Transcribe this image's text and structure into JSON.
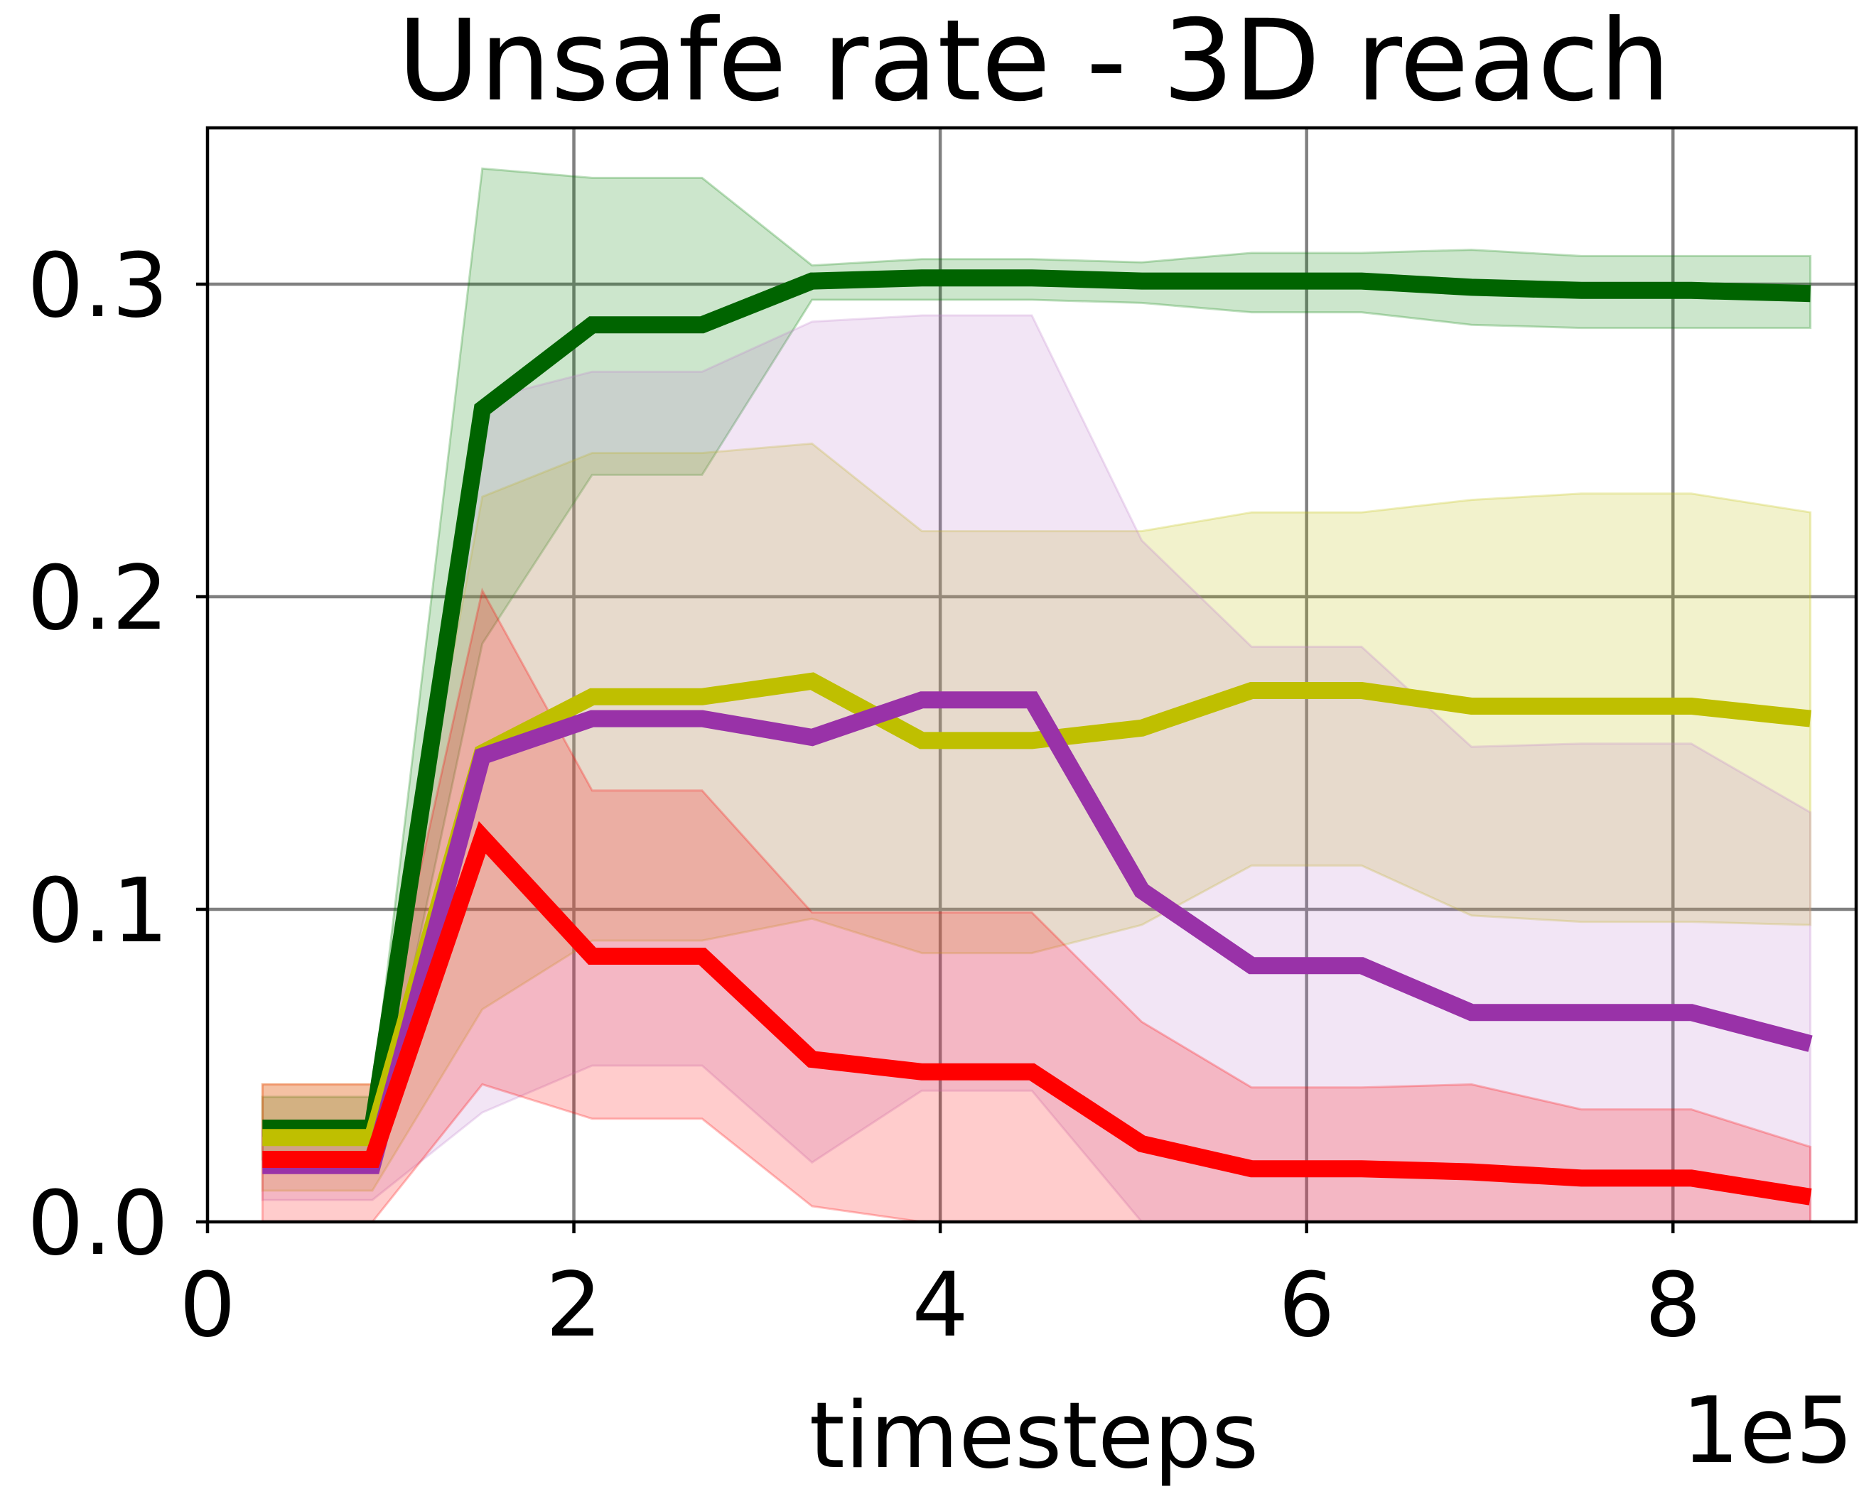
{
  "chart_data": {
    "type": "line",
    "title": "Unsafe rate - 3D reach",
    "xlabel": "timesteps",
    "ylabel": "",
    "x_multiplier_label": "1e5",
    "xlim": [
      0,
      9.0
    ],
    "ylim": [
      0,
      0.35
    ],
    "xticks": [
      0,
      2,
      4,
      6,
      8
    ],
    "xtick_labels": [
      "0",
      "2",
      "4",
      "6",
      "8"
    ],
    "yticks": [
      0.0,
      0.1,
      0.2,
      0.3
    ],
    "ytick_labels": [
      "0.0",
      "0.1",
      "0.2",
      "0.3"
    ],
    "grid": true,
    "legend": "none",
    "x": [
      0.3,
      0.9,
      1.5,
      2.1,
      2.7,
      3.3,
      3.9,
      4.5,
      5.1,
      5.7,
      6.3,
      6.9,
      7.5,
      8.1,
      8.75
    ],
    "series": [
      {
        "color": "#006400",
        "band_color": "#008000",
        "values": [
          0.03,
          0.03,
          0.26,
          0.287,
          0.287,
          0.301,
          0.302,
          0.302,
          0.301,
          0.301,
          0.301,
          0.299,
          0.298,
          0.298,
          0.297
        ],
        "lower": [
          0.02,
          0.02,
          0.185,
          0.239,
          0.239,
          0.295,
          0.295,
          0.295,
          0.294,
          0.291,
          0.291,
          0.287,
          0.286,
          0.286,
          0.286
        ],
        "upper": [
          0.04,
          0.04,
          0.337,
          0.334,
          0.334,
          0.306,
          0.308,
          0.308,
          0.307,
          0.31,
          0.31,
          0.311,
          0.309,
          0.309,
          0.309
        ]
      },
      {
        "color": "#bfbf00",
        "band_color": "#bfbf00",
        "values": [
          0.027,
          0.027,
          0.15,
          0.168,
          0.168,
          0.173,
          0.154,
          0.154,
          0.158,
          0.17,
          0.17,
          0.165,
          0.165,
          0.165,
          0.161
        ],
        "lower": [
          0.01,
          0.01,
          0.068,
          0.09,
          0.09,
          0.097,
          0.086,
          0.086,
          0.095,
          0.114,
          0.114,
          0.098,
          0.096,
          0.096,
          0.095
        ],
        "upper": [
          0.044,
          0.044,
          0.232,
          0.246,
          0.246,
          0.249,
          0.221,
          0.221,
          0.221,
          0.227,
          0.227,
          0.231,
          0.233,
          0.233,
          0.227
        ]
      },
      {
        "color": "#9932a8",
        "band_color": "#bf7fcc",
        "values": [
          0.018,
          0.018,
          0.149,
          0.161,
          0.161,
          0.155,
          0.167,
          0.167,
          0.106,
          0.082,
          0.082,
          0.067,
          0.067,
          0.067,
          0.057
        ],
        "lower": [
          0.007,
          0.007,
          0.035,
          0.05,
          0.05,
          0.019,
          0.042,
          0.042,
          0.0,
          0.0,
          0.0,
          0.0,
          0.0,
          0.0,
          0.0
        ],
        "upper": [
          0.029,
          0.029,
          0.263,
          0.272,
          0.272,
          0.288,
          0.29,
          0.29,
          0.218,
          0.184,
          0.184,
          0.152,
          0.153,
          0.153,
          0.131
        ]
      },
      {
        "color": "#ff0000",
        "band_color": "#ff0000",
        "values": [
          0.02,
          0.02,
          0.123,
          0.085,
          0.085,
          0.052,
          0.048,
          0.048,
          0.025,
          0.017,
          0.017,
          0.016,
          0.014,
          0.014,
          0.008
        ],
        "lower": [
          0.0,
          0.0,
          0.044,
          0.033,
          0.033,
          0.005,
          0.0,
          0.0,
          0.0,
          0.0,
          0.0,
          0.0,
          0.0,
          0.0,
          0.0
        ],
        "upper": [
          0.044,
          0.044,
          0.202,
          0.138,
          0.138,
          0.099,
          0.099,
          0.099,
          0.064,
          0.043,
          0.043,
          0.044,
          0.036,
          0.036,
          0.024
        ]
      }
    ]
  }
}
